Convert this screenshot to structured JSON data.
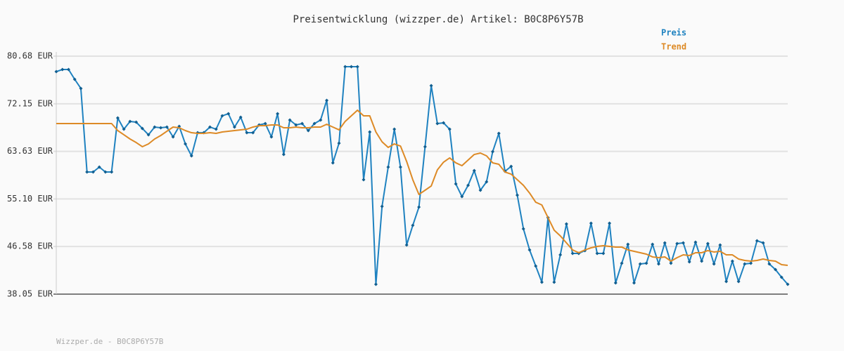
{
  "chart_data": {
    "type": "line",
    "title": "Preisentwicklung (wizzper.de) Artikel: B0C8P6Y57B",
    "footer": "Wizzper.de - B0C8P6Y57B",
    "legend": "top-right",
    "grid": true,
    "ylim": [
      38.05,
      80.68
    ],
    "yticks": [
      {
        "value": 38.05,
        "label": "38.05 EUR"
      },
      {
        "value": 46.58,
        "label": "46.58 EUR"
      },
      {
        "value": 55.1,
        "label": "55.10 EUR"
      },
      {
        "value": 63.63,
        "label": "63.63 EUR"
      },
      {
        "value": 72.15,
        "label": "72.15 EUR"
      },
      {
        "value": 80.68,
        "label": "80.68 EUR"
      }
    ],
    "series": [
      {
        "name": "Preis",
        "color": "#1f82c0",
        "markers": true,
        "values": [
          77.91,
          78.29,
          78.29,
          76.53,
          74.9,
          59.93,
          59.93,
          60.81,
          59.93,
          59.93,
          69.61,
          67.6,
          68.99,
          68.86,
          67.73,
          66.6,
          67.98,
          67.85,
          67.98,
          66.22,
          68.1,
          64.96,
          62.82,
          66.97,
          66.97,
          67.98,
          67.6,
          69.99,
          70.37,
          67.98,
          69.74,
          66.97,
          66.97,
          68.36,
          68.61,
          66.22,
          70.37,
          63.07,
          69.24,
          68.36,
          68.61,
          67.35,
          68.61,
          69.24,
          72.76,
          61.57,
          65.09,
          78.79,
          78.79,
          78.79,
          58.55,
          67.1,
          39.81,
          53.77,
          60.81,
          67.6,
          60.81,
          46.85,
          50.37,
          53.64,
          64.46,
          75.4,
          68.61,
          68.73,
          67.6,
          57.79,
          55.53,
          57.54,
          60.18,
          56.66,
          58.17,
          63.58,
          66.85,
          60.06,
          60.94,
          55.78,
          49.75,
          45.97,
          43.08,
          40.19,
          51.76,
          40.19,
          45.09,
          50.63,
          45.34,
          45.34,
          45.85,
          50.75,
          45.34,
          45.34,
          50.75,
          40.06,
          43.58,
          46.98,
          40.06,
          43.46,
          43.58,
          46.98,
          43.46,
          47.23,
          43.58,
          47.1,
          47.23,
          43.84,
          47.36,
          43.96,
          47.1,
          43.46,
          46.85,
          40.31,
          43.96,
          40.31,
          43.46,
          43.58,
          47.61,
          47.23,
          43.46,
          42.45,
          41.07,
          39.81
        ]
      },
      {
        "name": "Trend",
        "color": "#dd8a26",
        "markers": false,
        "values": [
          68.61,
          68.61,
          68.61,
          68.61,
          68.61,
          68.61,
          68.61,
          68.61,
          68.61,
          68.61,
          67.35,
          66.6,
          65.84,
          65.21,
          64.46,
          64.96,
          65.84,
          66.47,
          67.23,
          67.98,
          67.85,
          67.35,
          66.97,
          66.85,
          66.85,
          66.97,
          66.85,
          67.1,
          67.23,
          67.35,
          67.48,
          67.6,
          67.98,
          68.23,
          68.23,
          68.36,
          68.36,
          67.85,
          67.85,
          67.98,
          67.85,
          67.85,
          67.98,
          67.98,
          68.48,
          67.98,
          67.48,
          68.99,
          69.99,
          71.0,
          69.99,
          69.99,
          67.1,
          65.34,
          64.33,
          64.96,
          64.58,
          61.82,
          58.55,
          55.91,
          56.66,
          57.42,
          60.31,
          61.69,
          62.45,
          61.57,
          61.06,
          62.07,
          63.07,
          63.33,
          62.82,
          61.57,
          61.31,
          59.93,
          59.55,
          58.55,
          57.54,
          56.16,
          54.52,
          54.02,
          51.76,
          49.51,
          48.49,
          47.23,
          45.97,
          45.47,
          45.97,
          46.35,
          46.6,
          46.73,
          46.6,
          46.48,
          46.48,
          45.97,
          45.72,
          45.47,
          45.22,
          44.72,
          44.59,
          44.72,
          43.96,
          44.59,
          45.09,
          44.97,
          45.47,
          45.47,
          45.85,
          45.6,
          45.72,
          45.09,
          45.09,
          44.34,
          44.09,
          43.96,
          44.09,
          44.34,
          44.09,
          43.96,
          43.33,
          43.21
        ]
      }
    ]
  }
}
